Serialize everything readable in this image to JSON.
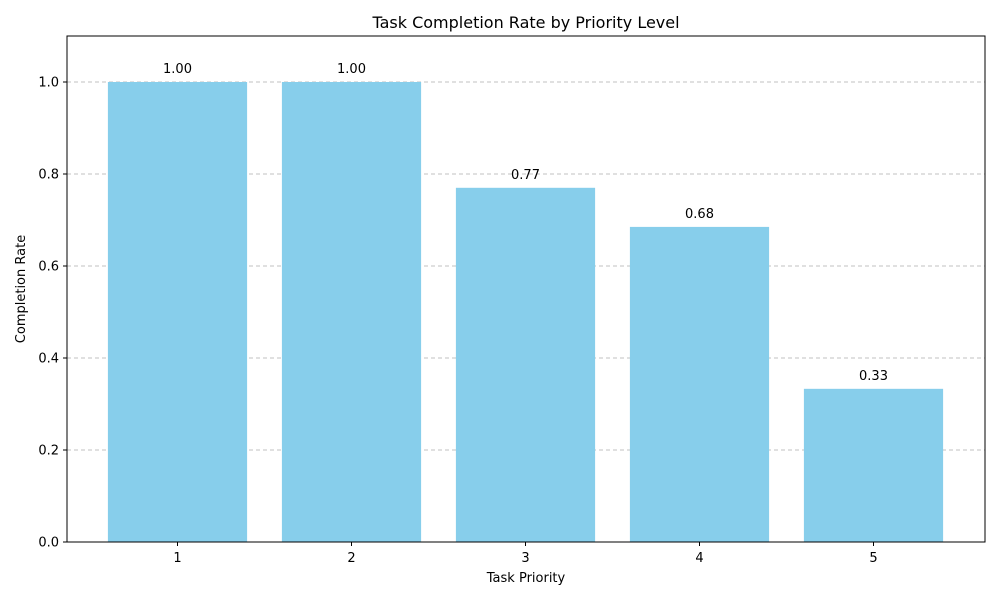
{
  "chart_data": {
    "type": "bar",
    "title": "Task Completion Rate by Priority Level",
    "xlabel": "Task Priority",
    "ylabel": "Completion Rate",
    "categories": [
      "1",
      "2",
      "3",
      "4",
      "5"
    ],
    "values": [
      1.0,
      1.0,
      0.77,
      0.685,
      0.333
    ],
    "value_labels": [
      "1.00",
      "1.00",
      "0.77",
      "0.68",
      "0.33"
    ],
    "ylim": [
      0,
      1.1
    ],
    "yticks": [
      0.0,
      0.2,
      0.4,
      0.6,
      0.8,
      1.0
    ],
    "ytick_labels": [
      "0.0",
      "0.2",
      "0.4",
      "0.6",
      "0.8",
      "1.0"
    ],
    "grid": "y dashed",
    "bar_color": "#87CEEB",
    "grid_color": "#c0c0c0"
  }
}
